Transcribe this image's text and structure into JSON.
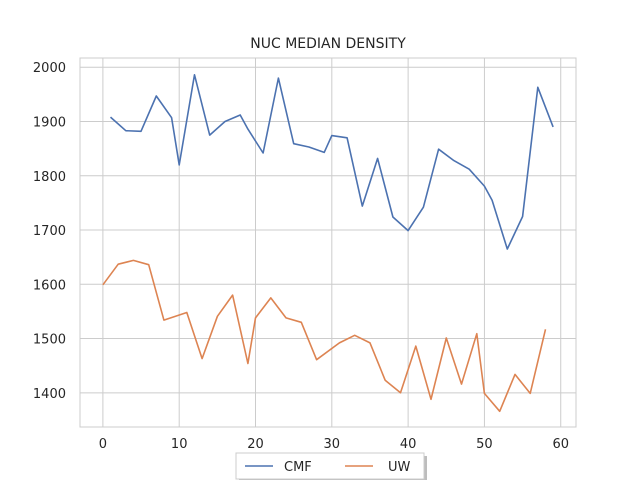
{
  "chart_data": {
    "type": "line",
    "title": "NUC MEDIAN DENSITY",
    "xlabel": "",
    "ylabel": "",
    "xlim": [
      -3,
      62
    ],
    "ylim": [
      1337,
      2017
    ],
    "xticks": [
      0,
      10,
      20,
      30,
      40,
      50,
      60
    ],
    "yticks": [
      1400,
      1500,
      1600,
      1700,
      1800,
      1900,
      2000
    ],
    "grid": true,
    "legend": "bottom-center",
    "series": [
      {
        "name": "CMF",
        "color": "#4c72b0",
        "x": [
          1,
          3,
          5,
          7,
          9,
          10,
          12,
          14,
          16,
          18,
          19,
          21,
          23,
          25,
          27,
          29,
          30,
          32,
          34,
          36,
          38,
          40,
          42,
          44,
          46,
          48,
          50,
          51,
          53,
          55,
          57,
          59
        ],
        "y": [
          1908,
          1883,
          1882,
          1947,
          1907,
          1820,
          1986,
          1875,
          1900,
          1912,
          1886,
          1842,
          1980,
          1859,
          1853,
          1843,
          1874,
          1870,
          1744,
          1832,
          1724,
          1699,
          1742,
          1849,
          1828,
          1812,
          1781,
          1755,
          1665,
          1725,
          1963,
          1890
        ]
      },
      {
        "name": "UW",
        "color": "#dd8452",
        "x": [
          0,
          2,
          4,
          6,
          8,
          11,
          13,
          15,
          17,
          19,
          20,
          22,
          24,
          26,
          28,
          31,
          33,
          35,
          37,
          39,
          41,
          43,
          45,
          47,
          49,
          50,
          52,
          54,
          56,
          58
        ],
        "y": [
          1599,
          1637,
          1644,
          1636,
          1534,
          1548,
          1463,
          1541,
          1580,
          1454,
          1538,
          1575,
          1538,
          1530,
          1461,
          1492,
          1506,
          1492,
          1423,
          1400,
          1486,
          1388,
          1501,
          1416,
          1509,
          1399,
          1366,
          1434,
          1399,
          1517
        ]
      }
    ]
  }
}
